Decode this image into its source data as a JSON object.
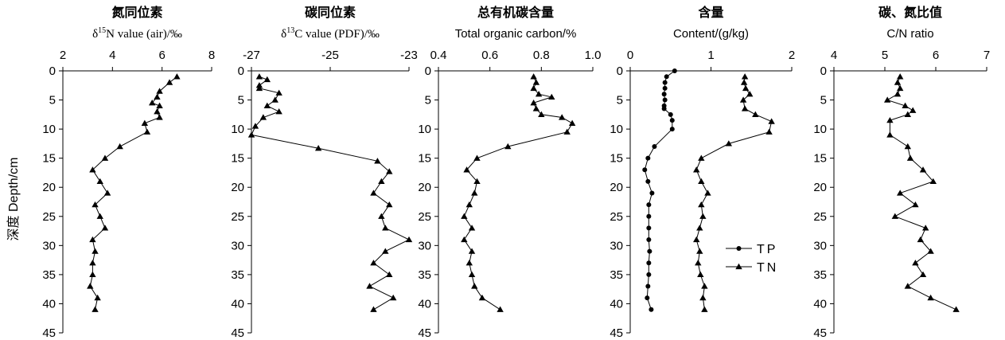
{
  "figure": {
    "ylabel": "深度 Depth/cm"
  },
  "chart_data": [
    {
      "type": "line",
      "title": "氮同位素",
      "xlabel": "δ15N value (air)/‰",
      "xlim": [
        2,
        8
      ],
      "xticks": [
        "2",
        "4",
        "6",
        "8"
      ],
      "ylim": [
        0,
        45
      ],
      "yticks": [
        "0",
        "5",
        "10",
        "15",
        "20",
        "25",
        "30",
        "35",
        "40",
        "45"
      ],
      "y_inverted": true,
      "series": [
        {
          "marker": "triangle",
          "points": [
            {
              "x": 6.6,
              "y": 1
            },
            {
              "x": 6.3,
              "y": 2
            },
            {
              "x": 5.9,
              "y": 3.5
            },
            {
              "x": 5.8,
              "y": 4.5
            },
            {
              "x": 5.6,
              "y": 5.5
            },
            {
              "x": 5.9,
              "y": 6
            },
            {
              "x": 5.8,
              "y": 7
            },
            {
              "x": 5.9,
              "y": 8
            },
            {
              "x": 5.3,
              "y": 9
            },
            {
              "x": 5.4,
              "y": 10.5
            },
            {
              "x": 4.3,
              "y": 13
            },
            {
              "x": 3.7,
              "y": 15
            },
            {
              "x": 3.2,
              "y": 17
            },
            {
              "x": 3.5,
              "y": 19
            },
            {
              "x": 3.8,
              "y": 21
            },
            {
              "x": 3.3,
              "y": 23
            },
            {
              "x": 3.5,
              "y": 25
            },
            {
              "x": 3.7,
              "y": 27
            },
            {
              "x": 3.2,
              "y": 29
            },
            {
              "x": 3.3,
              "y": 31
            },
            {
              "x": 3.2,
              "y": 33
            },
            {
              "x": 3.2,
              "y": 35
            },
            {
              "x": 3.1,
              "y": 37
            },
            {
              "x": 3.4,
              "y": 39
            },
            {
              "x": 3.3,
              "y": 41
            }
          ]
        }
      ]
    },
    {
      "type": "line",
      "title": "碳同位素",
      "xlabel": "δ13C value (PDF)/‰",
      "xlim": [
        -27,
        -23
      ],
      "xticks": [
        "-27",
        "-25",
        "-23"
      ],
      "ylim": [
        0,
        45
      ],
      "yticks": [
        "0",
        "5",
        "10",
        "15",
        "20",
        "25",
        "30",
        "35",
        "40",
        "45"
      ],
      "y_inverted": true,
      "series": [
        {
          "marker": "triangle",
          "points": [
            {
              "x": -26.8,
              "y": 1
            },
            {
              "x": -26.6,
              "y": 1.5
            },
            {
              "x": -26.8,
              "y": 2.5
            },
            {
              "x": -26.8,
              "y": 3
            },
            {
              "x": -26.3,
              "y": 3.8
            },
            {
              "x": -26.4,
              "y": 5
            },
            {
              "x": -26.6,
              "y": 6
            },
            {
              "x": -26.3,
              "y": 7
            },
            {
              "x": -26.7,
              "y": 8
            },
            {
              "x": -26.9,
              "y": 9.5
            },
            {
              "x": -27.0,
              "y": 11
            },
            {
              "x": -25.3,
              "y": 13.3
            },
            {
              "x": -23.8,
              "y": 15.5
            },
            {
              "x": -23.5,
              "y": 17.3
            },
            {
              "x": -23.7,
              "y": 19
            },
            {
              "x": -23.9,
              "y": 21
            },
            {
              "x": -23.5,
              "y": 23
            },
            {
              "x": -23.7,
              "y": 25
            },
            {
              "x": -23.6,
              "y": 27
            },
            {
              "x": -23.0,
              "y": 29
            },
            {
              "x": -23.6,
              "y": 31
            },
            {
              "x": -23.9,
              "y": 33
            },
            {
              "x": -23.5,
              "y": 35
            },
            {
              "x": -24.0,
              "y": 37
            },
            {
              "x": -23.4,
              "y": 39
            },
            {
              "x": -23.9,
              "y": 41
            }
          ]
        }
      ]
    },
    {
      "type": "line",
      "title": "总有机碳含量",
      "xlabel": "Total organic carbon/%",
      "xlim": [
        0.4,
        1.0
      ],
      "xticks": [
        "0.4",
        "0.6",
        "0.8",
        "1.0"
      ],
      "ylim": [
        0,
        45
      ],
      "yticks": [
        "0",
        "5",
        "10",
        "15",
        "20",
        "25",
        "30",
        "35",
        "40",
        "45"
      ],
      "y_inverted": true,
      "series": [
        {
          "marker": "triangle",
          "points": [
            {
              "x": 0.77,
              "y": 1
            },
            {
              "x": 0.78,
              "y": 2
            },
            {
              "x": 0.77,
              "y": 3
            },
            {
              "x": 0.79,
              "y": 4
            },
            {
              "x": 0.84,
              "y": 4.5
            },
            {
              "x": 0.77,
              "y": 5.5
            },
            {
              "x": 0.78,
              "y": 6.5
            },
            {
              "x": 0.8,
              "y": 7.5
            },
            {
              "x": 0.88,
              "y": 8
            },
            {
              "x": 0.92,
              "y": 9
            },
            {
              "x": 0.9,
              "y": 10.5
            },
            {
              "x": 0.67,
              "y": 13
            },
            {
              "x": 0.55,
              "y": 15
            },
            {
              "x": 0.51,
              "y": 17
            },
            {
              "x": 0.55,
              "y": 19
            },
            {
              "x": 0.54,
              "y": 21
            },
            {
              "x": 0.52,
              "y": 23
            },
            {
              "x": 0.5,
              "y": 25
            },
            {
              "x": 0.53,
              "y": 27
            },
            {
              "x": 0.5,
              "y": 29
            },
            {
              "x": 0.53,
              "y": 31
            },
            {
              "x": 0.52,
              "y": 33
            },
            {
              "x": 0.53,
              "y": 35
            },
            {
              "x": 0.54,
              "y": 37
            },
            {
              "x": 0.57,
              "y": 39
            },
            {
              "x": 0.64,
              "y": 41
            }
          ]
        }
      ]
    },
    {
      "type": "line",
      "title": "含量",
      "xlabel": "Content/(g/kg)",
      "xlim": [
        0,
        2
      ],
      "xticks": [
        "0",
        "1",
        "2"
      ],
      "ylim": [
        0,
        45
      ],
      "yticks": [
        "0",
        "5",
        "10",
        "15",
        "20",
        "25",
        "30",
        "35",
        "40",
        "45"
      ],
      "y_inverted": true,
      "legend": "center-right",
      "series": [
        {
          "name": "TP",
          "marker": "circle",
          "points": [
            {
              "x": 0.55,
              "y": 0
            },
            {
              "x": 0.45,
              "y": 1
            },
            {
              "x": 0.43,
              "y": 2
            },
            {
              "x": 0.43,
              "y": 3
            },
            {
              "x": 0.42,
              "y": 4
            },
            {
              "x": 0.43,
              "y": 5
            },
            {
              "x": 0.42,
              "y": 6
            },
            {
              "x": 0.42,
              "y": 6.5
            },
            {
              "x": 0.5,
              "y": 7.5
            },
            {
              "x": 0.52,
              "y": 8.5
            },
            {
              "x": 0.52,
              "y": 10
            },
            {
              "x": 0.3,
              "y": 13
            },
            {
              "x": 0.22,
              "y": 15
            },
            {
              "x": 0.18,
              "y": 17
            },
            {
              "x": 0.22,
              "y": 19
            },
            {
              "x": 0.27,
              "y": 21
            },
            {
              "x": 0.23,
              "y": 23
            },
            {
              "x": 0.23,
              "y": 25
            },
            {
              "x": 0.23,
              "y": 27
            },
            {
              "x": 0.23,
              "y": 29
            },
            {
              "x": 0.24,
              "y": 31
            },
            {
              "x": 0.23,
              "y": 33
            },
            {
              "x": 0.23,
              "y": 35
            },
            {
              "x": 0.22,
              "y": 37
            },
            {
              "x": 0.21,
              "y": 39
            },
            {
              "x": 0.26,
              "y": 41
            }
          ]
        },
        {
          "name": "TN",
          "marker": "triangle",
          "points": [
            {
              "x": 1.42,
              "y": 1
            },
            {
              "x": 1.41,
              "y": 2
            },
            {
              "x": 1.43,
              "y": 3
            },
            {
              "x": 1.48,
              "y": 4
            },
            {
              "x": 1.4,
              "y": 5
            },
            {
              "x": 1.42,
              "y": 6.5
            },
            {
              "x": 1.55,
              "y": 7.5
            },
            {
              "x": 1.75,
              "y": 8.7
            },
            {
              "x": 1.72,
              "y": 10.5
            },
            {
              "x": 1.22,
              "y": 12.5
            },
            {
              "x": 0.88,
              "y": 15
            },
            {
              "x": 0.82,
              "y": 17
            },
            {
              "x": 0.88,
              "y": 19
            },
            {
              "x": 0.96,
              "y": 21
            },
            {
              "x": 0.88,
              "y": 23
            },
            {
              "x": 0.9,
              "y": 25
            },
            {
              "x": 0.86,
              "y": 27
            },
            {
              "x": 0.82,
              "y": 29
            },
            {
              "x": 0.86,
              "y": 31
            },
            {
              "x": 0.84,
              "y": 33
            },
            {
              "x": 0.87,
              "y": 35
            },
            {
              "x": 0.92,
              "y": 37
            },
            {
              "x": 0.9,
              "y": 39
            },
            {
              "x": 0.92,
              "y": 41
            }
          ]
        }
      ]
    },
    {
      "type": "line",
      "title": "碳、氮比值",
      "xlabel": "C/N ratio",
      "xlim": [
        4,
        7
      ],
      "xticks": [
        "4",
        "5",
        "6",
        "7"
      ],
      "ylim": [
        0,
        45
      ],
      "yticks": [
        "0",
        "5",
        "10",
        "15",
        "20",
        "25",
        "30",
        "35",
        "40",
        "45"
      ],
      "y_inverted": true,
      "series": [
        {
          "marker": "triangle",
          "points": [
            {
              "x": 5.3,
              "y": 1
            },
            {
              "x": 5.25,
              "y": 2
            },
            {
              "x": 5.3,
              "y": 3
            },
            {
              "x": 5.25,
              "y": 4
            },
            {
              "x": 5.05,
              "y": 5
            },
            {
              "x": 5.4,
              "y": 6
            },
            {
              "x": 5.55,
              "y": 6.8
            },
            {
              "x": 5.45,
              "y": 7.5
            },
            {
              "x": 5.1,
              "y": 8.5
            },
            {
              "x": 5.1,
              "y": 11
            },
            {
              "x": 5.45,
              "y": 13
            },
            {
              "x": 5.5,
              "y": 15
            },
            {
              "x": 5.75,
              "y": 17
            },
            {
              "x": 5.95,
              "y": 19
            },
            {
              "x": 5.3,
              "y": 21
            },
            {
              "x": 5.6,
              "y": 23
            },
            {
              "x": 5.2,
              "y": 25
            },
            {
              "x": 5.8,
              "y": 27
            },
            {
              "x": 5.7,
              "y": 29
            },
            {
              "x": 5.9,
              "y": 31
            },
            {
              "x": 5.6,
              "y": 33
            },
            {
              "x": 5.75,
              "y": 35
            },
            {
              "x": 5.45,
              "y": 37
            },
            {
              "x": 5.9,
              "y": 39
            },
            {
              "x": 6.4,
              "y": 41
            }
          ]
        }
      ]
    }
  ]
}
